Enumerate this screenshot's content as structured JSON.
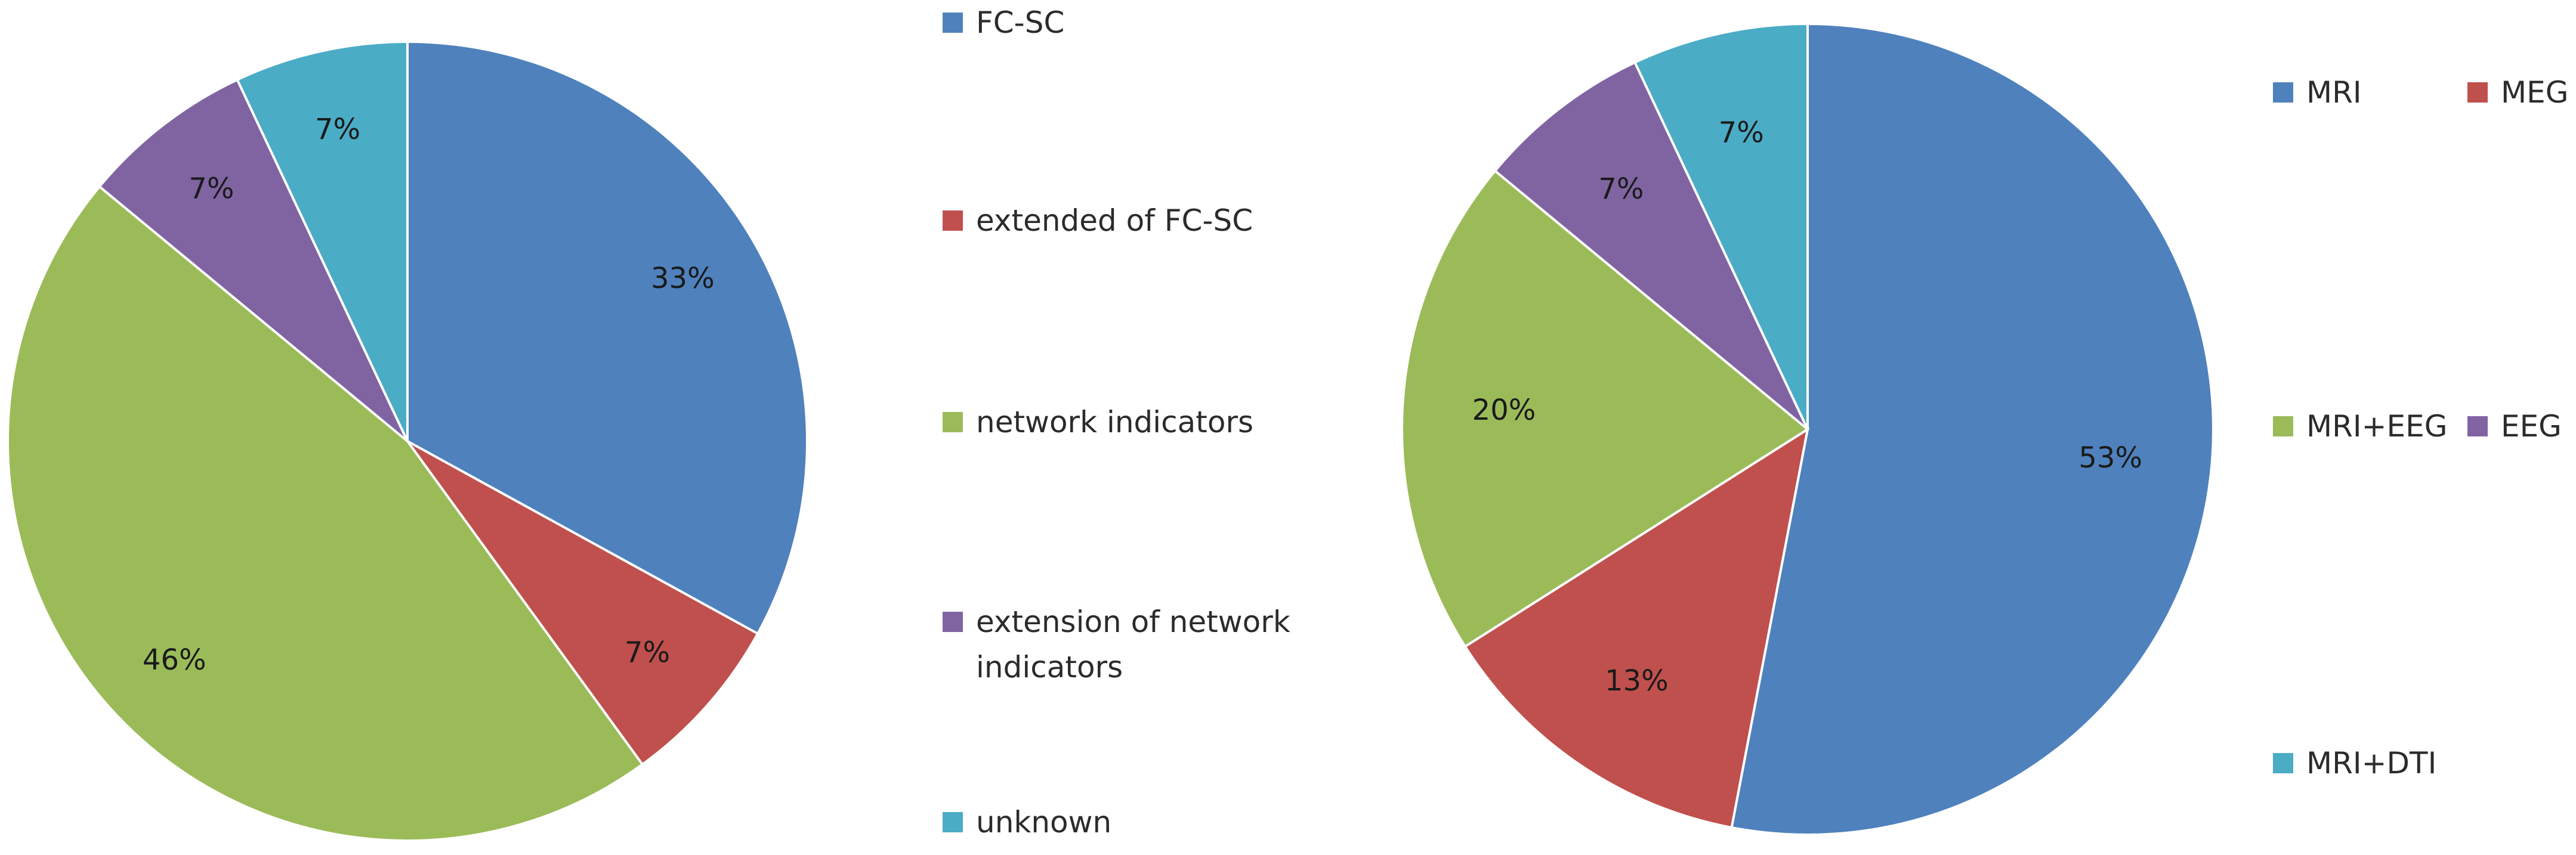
{
  "chart_data": [
    {
      "type": "pie",
      "title": "",
      "start_angle_deg": 0,
      "direction": "clockwise",
      "legend_position": "right",
      "legend_layout": "vertical single column",
      "slices": [
        {
          "label": "FC-SC",
          "value": 33,
          "value_label": "33%",
          "color": "#4F81BD"
        },
        {
          "label": "extended of FC-SC",
          "value": 7,
          "value_label": "7%",
          "color": "#C0504D"
        },
        {
          "label": "network indicators",
          "value": 46,
          "value_label": "46%",
          "color": "#9BBB59"
        },
        {
          "label": "extension of network indicators",
          "value": 7,
          "value_label": "7%",
          "color": "#8064A2"
        },
        {
          "label": "unknown",
          "value": 7,
          "value_label": "7%",
          "color": "#4BACC6"
        }
      ]
    },
    {
      "type": "pie",
      "title": "",
      "start_angle_deg": 0,
      "direction": "clockwise",
      "legend_position": "right",
      "legend_layout": "two columns",
      "slices": [
        {
          "label": "MRI",
          "value": 53,
          "value_label": "53%",
          "color": "#4F81BD"
        },
        {
          "label": "MEG",
          "value": 13,
          "value_label": "13%",
          "color": "#C0504D"
        },
        {
          "label": "MRI+EEG",
          "value": 20,
          "value_label": "20%",
          "color": "#9BBB59"
        },
        {
          "label": "EEG",
          "value": 7,
          "value_label": "7%",
          "color": "#8064A2"
        },
        {
          "label": "MRI+DTI",
          "value": 7,
          "value_label": "7%",
          "color": "#4BACC6"
        }
      ]
    }
  ]
}
